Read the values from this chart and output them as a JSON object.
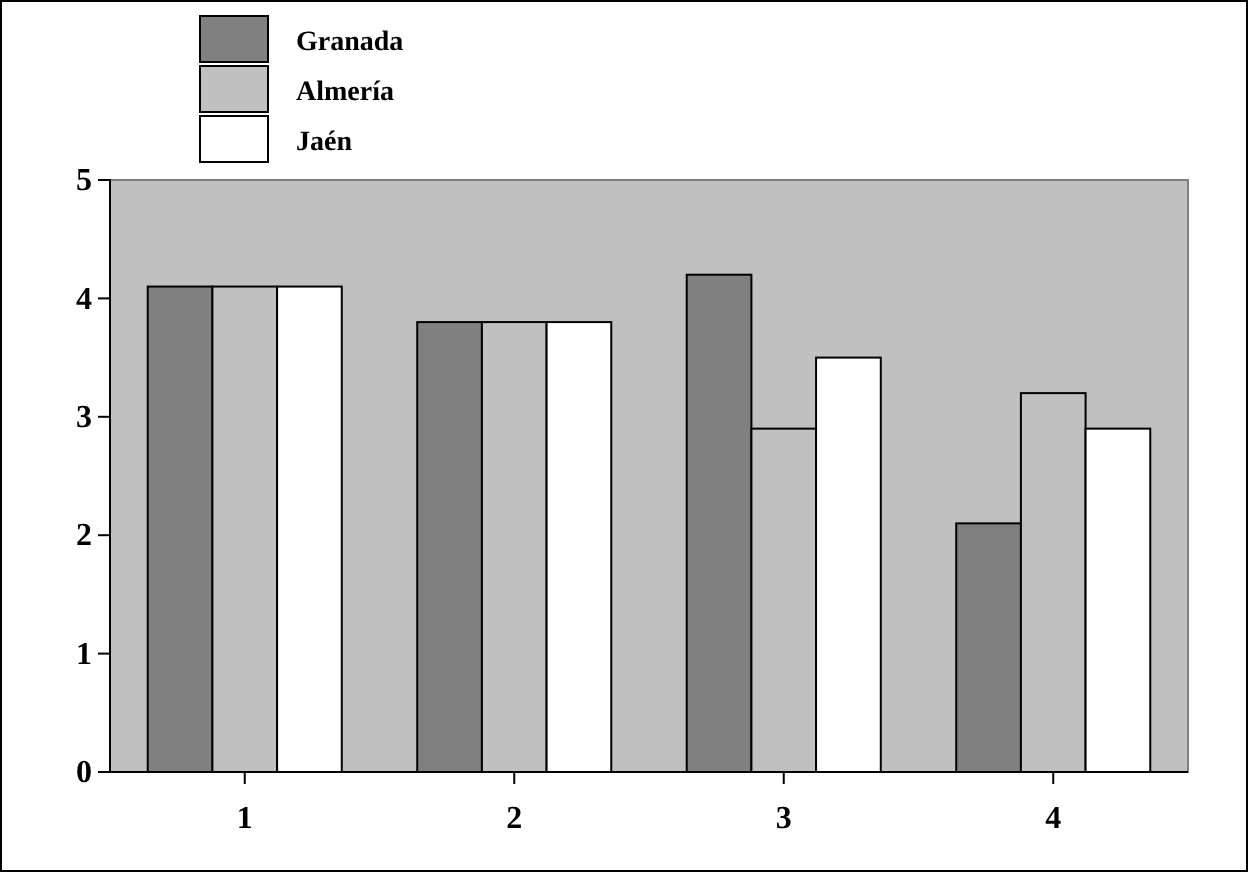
{
  "chart_data": {
    "type": "bar",
    "categories": [
      "1",
      "2",
      "3",
      "4"
    ],
    "series": [
      {
        "name": "Granada",
        "color": "#808080",
        "values": [
          4.1,
          3.8,
          4.2,
          2.1
        ]
      },
      {
        "name": "Almería",
        "color": "#c0c0c0",
        "values": [
          4.1,
          3.8,
          2.9,
          3.2
        ]
      },
      {
        "name": "Jaén",
        "color": "#ffffff",
        "values": [
          4.1,
          3.8,
          3.5,
          2.9
        ]
      }
    ],
    "ylim": [
      0,
      5
    ],
    "yticks": [
      0,
      1,
      2,
      3,
      4,
      5
    ],
    "grid": false,
    "legend": "top left"
  }
}
